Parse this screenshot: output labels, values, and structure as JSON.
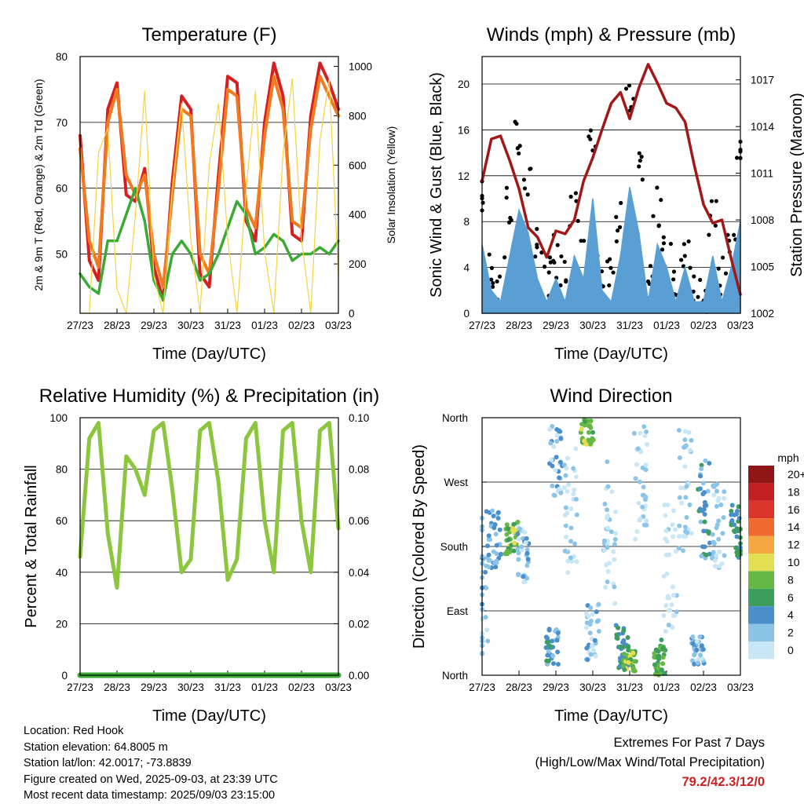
{
  "footer": {
    "location": "Location: Red Hook",
    "elevation": "Station elevation: 64.8005 m",
    "latlon": "Station lat/lon: 42.0017; -73.8839",
    "created": "Figure created on Wed, 2025-09-03, at 23:39 UTC",
    "recent": "Most recent data timestamp: 2025/09/03 23:15:00",
    "extremes_title": "Extremes For Past 7 Days",
    "extremes_sub": "(High/Low/Max Wind/Total Precipitation)",
    "extremes_values": "79.2/42.3/12/0"
  },
  "colors": {
    "temp2m": "#d42020",
    "temp9m": "#f07a20",
    "dewpoint": "#3aaa35",
    "solar": "#f5d442",
    "gust": "#000000",
    "wind": "#5a9fd4",
    "pressure": "#a01818",
    "rh": "#8cc63f",
    "precip": "#3aaa35"
  },
  "chart_data": [
    {
      "id": "temperature",
      "type": "line",
      "title": "Temperature (F)",
      "xlabel": "Time (Day/UTC)",
      "ylabel": "2m & 9m T (Red, Orange) & 2m Td (Green)",
      "ylabel_right": "Solar Insolation (Yellow)",
      "x_ticks": [
        "27/23",
        "28/23",
        "29/23",
        "30/23",
        "31/23",
        "01/23",
        "02/23",
        "03/23"
      ],
      "ylim": [
        41,
        80
      ],
      "yticks": [
        50,
        60,
        70,
        80
      ],
      "ylim_right": [
        0,
        1040
      ],
      "yticks_right": [
        0,
        200,
        400,
        600,
        800,
        1000
      ],
      "grid": true,
      "x": [
        0,
        0.25,
        0.5,
        0.75,
        1,
        1.25,
        1.5,
        1.75,
        2,
        2.25,
        2.5,
        2.75,
        3,
        3.25,
        3.5,
        3.75,
        4,
        4.25,
        4.5,
        4.75,
        5,
        5.25,
        5.5,
        5.75,
        6,
        6.25,
        6.5,
        6.75,
        7
      ],
      "series": [
        {
          "key": "temp2m",
          "values": [
            68,
            49,
            46,
            72,
            76,
            59,
            58,
            63,
            48,
            43,
            61,
            74,
            72,
            47,
            45,
            62,
            77,
            76,
            55,
            52,
            70,
            79,
            74,
            53,
            52,
            71,
            79,
            76,
            72
          ]
        },
        {
          "key": "temp9m",
          "values": [
            66,
            52,
            48,
            70,
            75,
            62,
            59,
            62,
            50,
            45,
            59,
            72,
            71,
            50,
            47,
            60,
            75,
            74,
            57,
            54,
            68,
            77,
            72,
            55,
            54,
            69,
            77,
            74,
            71
          ]
        },
        {
          "key": "dewpoint",
          "values": [
            47,
            45,
            44,
            52,
            52,
            56,
            60,
            55,
            46,
            43,
            50,
            52,
            50,
            46,
            47,
            50,
            54,
            58,
            56,
            50,
            51,
            53,
            52,
            49,
            50,
            50,
            51,
            50,
            52
          ]
        },
        {
          "key": "solar",
          "values": [
            0,
            0,
            650,
            750,
            100,
            0,
            400,
            900,
            150,
            0,
            500,
            850,
            300,
            0,
            600,
            850,
            300,
            0,
            500,
            900,
            250,
            0,
            650,
            950,
            300,
            0,
            700,
            950,
            150
          ]
        }
      ]
    },
    {
      "id": "winds",
      "type": "line",
      "title": "Winds (mph) & Pressure (mb)",
      "xlabel": "Time (Day/UTC)",
      "ylabel": "Sonic Wind & Gust (Blue, Black)",
      "ylabel_right": "Station Pressure (Maroon)",
      "x_ticks": [
        "27/23",
        "28/23",
        "29/23",
        "30/23",
        "31/23",
        "01/23",
        "02/23",
        "03/23"
      ],
      "ylim": [
        0,
        22.4
      ],
      "yticks": [
        0,
        4,
        8,
        12,
        16,
        20
      ],
      "ylim_right": [
        1002,
        1018.5
      ],
      "yticks_right": [
        1002,
        1005,
        1008,
        1011,
        1014,
        1017
      ],
      "grid": true,
      "x": [
        0,
        0.25,
        0.5,
        0.75,
        1,
        1.25,
        1.5,
        1.75,
        2,
        2.25,
        2.5,
        2.75,
        3,
        3.25,
        3.5,
        3.75,
        4,
        4.25,
        4.5,
        4.75,
        5,
        5.25,
        5.5,
        5.75,
        6,
        6.25,
        6.5,
        6.75,
        7
      ],
      "series": [
        {
          "key": "gust",
          "values": [
            10,
            4,
            3,
            9,
            15,
            12,
            6,
            3,
            5,
            3,
            9,
            5,
            16,
            4,
            3,
            8,
            18,
            12,
            3,
            9,
            6,
            2,
            6,
            3,
            2,
            8,
            3,
            6,
            14
          ]
        },
        {
          "key": "wind",
          "values": [
            6,
            2,
            1,
            5,
            9,
            7,
            3,
            1,
            3,
            1,
            5,
            3,
            10,
            2,
            1,
            5,
            11,
            7,
            1,
            6,
            4,
            1,
            4,
            1,
            1,
            5,
            1,
            4,
            8
          ]
        },
        {
          "key": "pressure",
          "values": [
            1010.5,
            1013.2,
            1013.4,
            1011.8,
            1010.0,
            1007.5,
            1006.9,
            1005.6,
            1007.3,
            1007.1,
            1008.0,
            1010.5,
            1012.0,
            1013.8,
            1015.5,
            1016.2,
            1014.5,
            1016.5,
            1018.0,
            1016.8,
            1015.5,
            1015.2,
            1014.3,
            1011.5,
            1009.0,
            1007.8,
            1008.0,
            1005.5,
            1003.2
          ]
        }
      ]
    },
    {
      "id": "humidity",
      "type": "line",
      "title": "Relative Humidity (%) & Precipitation (in)",
      "xlabel": "Time (Day/UTC)",
      "ylabel": "Percent & Total Rainfall",
      "x_ticks": [
        "27/23",
        "28/23",
        "29/23",
        "30/23",
        "31/23",
        "01/23",
        "02/23",
        "03/23"
      ],
      "ylim": [
        0,
        100
      ],
      "yticks": [
        0,
        20,
        40,
        60,
        80,
        100
      ],
      "ylim_right": [
        0,
        0.1
      ],
      "yticks_right": [
        "0.00",
        "0.02",
        "0.04",
        "0.06",
        "0.08",
        "0.10"
      ],
      "grid": true,
      "x": [
        0,
        0.25,
        0.5,
        0.75,
        1,
        1.25,
        1.5,
        1.75,
        2,
        2.25,
        2.5,
        2.75,
        3,
        3.25,
        3.5,
        3.75,
        4,
        4.25,
        4.5,
        4.75,
        5,
        5.25,
        5.5,
        5.75,
        6,
        6.25,
        6.5,
        6.75,
        7
      ],
      "series": [
        {
          "key": "rh",
          "values": [
            46,
            92,
            98,
            55,
            34,
            85,
            80,
            70,
            95,
            98,
            72,
            40,
            45,
            95,
            98,
            75,
            37,
            45,
            92,
            98,
            60,
            40,
            95,
            98,
            60,
            40,
            95,
            98,
            57
          ]
        },
        {
          "key": "precip",
          "values": [
            0,
            0,
            0,
            0,
            0,
            0,
            0,
            0,
            0,
            0,
            0,
            0,
            0,
            0,
            0,
            0,
            0,
            0,
            0,
            0,
            0,
            0,
            0,
            0,
            0,
            0,
            0,
            0,
            0
          ]
        }
      ]
    },
    {
      "id": "direction",
      "type": "scatter",
      "title": "Wind Direction",
      "xlabel": "Time (Day/UTC)",
      "ylabel": "Direction (Colored By Speed)",
      "x_ticks": [
        "27/23",
        "28/23",
        "29/23",
        "30/23",
        "31/23",
        "01/23",
        "02/23",
        "03/23"
      ],
      "y_ticks": [
        "North",
        "East",
        "South",
        "West",
        "North"
      ],
      "ylim": [
        0,
        360
      ],
      "grid": true,
      "colorbar": {
        "unit": "mph",
        "labels": [
          "0",
          "2",
          "4",
          "6",
          "8",
          "10",
          "12",
          "14",
          "16",
          "18",
          "20+"
        ],
        "colors": [
          "#c8e6f5",
          "#8cc4e8",
          "#4a8fcb",
          "#3c9e5a",
          "#66b846",
          "#e2df52",
          "#f5a842",
          "#ee6a2e",
          "#d9352a",
          "#c21f23",
          "#8e1616"
        ]
      },
      "clusters": [
        {
          "x": 0.0,
          "dir": 130,
          "spread": 100,
          "speed": 3
        },
        {
          "x": 0.35,
          "dir": 190,
          "spread": 40,
          "speed": 4
        },
        {
          "x": 0.8,
          "dir": 190,
          "spread": 25,
          "speed": 9
        },
        {
          "x": 1.1,
          "dir": 170,
          "spread": 40,
          "speed": 3
        },
        {
          "x": 1.9,
          "dir": 40,
          "spread": 25,
          "speed": 5
        },
        {
          "x": 2.0,
          "dir": 300,
          "spread": 50,
          "speed": 3
        },
        {
          "x": 2.4,
          "dir": 230,
          "spread": 90,
          "speed": 1
        },
        {
          "x": 2.85,
          "dir": 340,
          "spread": 18,
          "speed": 9
        },
        {
          "x": 3.0,
          "dir": 60,
          "spread": 40,
          "speed": 3
        },
        {
          "x": 3.45,
          "dir": 200,
          "spread": 100,
          "speed": 2
        },
        {
          "x": 3.8,
          "dir": 40,
          "spread": 30,
          "speed": 6
        },
        {
          "x": 4.0,
          "dir": 20,
          "spread": 15,
          "speed": 9
        },
        {
          "x": 4.3,
          "dir": 270,
          "spread": 80,
          "speed": 2
        },
        {
          "x": 4.8,
          "dir": 25,
          "spread": 25,
          "speed": 8
        },
        {
          "x": 5.1,
          "dir": 150,
          "spread": 90,
          "speed": 1
        },
        {
          "x": 5.5,
          "dir": 260,
          "spread": 90,
          "speed": 2
        },
        {
          "x": 5.85,
          "dir": 35,
          "spread": 20,
          "speed": 3
        },
        {
          "x": 6.0,
          "dir": 230,
          "spread": 70,
          "speed": 5
        },
        {
          "x": 6.4,
          "dir": 210,
          "spread": 60,
          "speed": 2
        },
        {
          "x": 6.9,
          "dir": 200,
          "spread": 40,
          "speed": 6
        }
      ]
    }
  ]
}
